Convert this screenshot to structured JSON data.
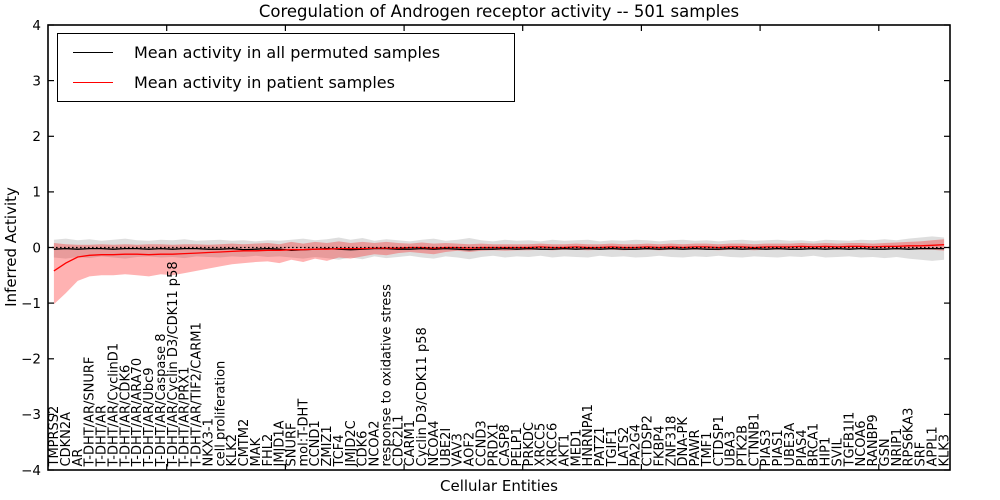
{
  "chart_data": {
    "type": "line",
    "title": "Coregulation of Androgen receptor activity -- 501 samples",
    "xlabel": "Cellular Entities",
    "ylabel": "Inferred Activity",
    "ylim": [
      -4,
      4
    ],
    "yticks": [
      4,
      3,
      2,
      1,
      0,
      -1,
      -2,
      -3,
      -4
    ],
    "ytick_labels": [
      "4",
      "3",
      "2",
      "1",
      "0",
      "−1",
      "−2",
      "−3",
      "−4"
    ],
    "xtick_every": 10,
    "grid": false,
    "legend_position": "upper left",
    "categories": [
      "TMPRSS2",
      "CDKN2A",
      "AR",
      "T-DHT/AR/SNURF",
      "T-DHT/AR",
      "T-DHT/AR/CyclinD1",
      "T-DHT/AR/CDK6",
      "T-DHT/AR/ARA70",
      "T-DHT/AR/Ubc9",
      "T-DHT/AR/Caspase 8",
      "T-DHT/AR/Cyclin D3/CDK11 p58",
      "T-DHT/AR/PRX1",
      "T-DHT/AR/TIF2/CARM1",
      "NKX3-1",
      "cell proliferation",
      "KLK2",
      "CMTM2",
      "MAK",
      "FHL2",
      "JMJD1A",
      "SNURF",
      "mol:T-DHT",
      "CCND1",
      "ZMIZ1",
      "TCF4",
      "JMJD2C",
      "CDK6",
      "NCOA2",
      "response to oxidative stress",
      "CDC2L1",
      "CARM1",
      "Cyclin D3/CDK11 p58",
      "NCOA4",
      "UBE2I",
      "VAV3",
      "AOF2",
      "CCND3",
      "PRDX1",
      "CASP8",
      "PELP1",
      "PRKDC",
      "XRCC5",
      "XRCC6",
      "AKT1",
      "MED1",
      "HNRNPA1",
      "PATZ1",
      "TGIF1",
      "LATS2",
      "PA2G4",
      "CTDSP2",
      "FKBP4",
      "ZNF318",
      "DNA-PK",
      "PAWR",
      "TMF1",
      "CTDSP1",
      "UBA3",
      "PTK2B",
      "CTNNB1",
      "PIAS3",
      "PIAS1",
      "UBE3A",
      "PIAS4",
      "BRCA1",
      "HIP1",
      "SVIL",
      "TGFB1I1",
      "NCOA6",
      "RANBP9",
      "GSN",
      "NRIP1",
      "RPS6KA3",
      "SRF",
      "APPL1",
      "KLK3"
    ],
    "series": [
      {
        "name": "Mean activity in all permuted samples",
        "color": "#000000",
        "style": "solid",
        "values": [
          -0.03,
          -0.02,
          -0.03,
          -0.02,
          -0.02,
          -0.03,
          -0.02,
          -0.02,
          -0.03,
          -0.02,
          -0.03,
          -0.02,
          -0.02,
          -0.03,
          -0.03,
          -0.02,
          -0.04,
          -0.03,
          -0.02,
          -0.03,
          -0.05,
          -0.04,
          -0.03,
          -0.02,
          -0.03,
          -0.04,
          -0.03,
          -0.02,
          -0.02,
          -0.03,
          -0.03,
          -0.02,
          -0.03,
          -0.02,
          -0.03,
          -0.04,
          -0.03,
          -0.03,
          -0.02,
          -0.03,
          -0.02,
          -0.03,
          -0.03,
          -0.02,
          -0.03,
          -0.02,
          -0.03,
          -0.02,
          -0.03,
          -0.03,
          -0.02,
          -0.03,
          -0.02,
          -0.03,
          -0.02,
          -0.03,
          -0.03,
          -0.02,
          -0.03,
          -0.02,
          -0.03,
          -0.02,
          -0.03,
          -0.03,
          -0.02,
          -0.03,
          -0.02,
          -0.03,
          -0.02,
          -0.03,
          -0.03,
          -0.02,
          -0.03,
          -0.02,
          -0.02,
          -0.02
        ]
      },
      {
        "name": "Mean activity in patient samples",
        "color": "#ff0000",
        "style": "solid",
        "values": [
          -0.42,
          -0.28,
          -0.17,
          -0.14,
          -0.13,
          -0.13,
          -0.12,
          -0.12,
          -0.13,
          -0.12,
          -0.12,
          -0.11,
          -0.1,
          -0.09,
          -0.08,
          -0.07,
          -0.06,
          -0.06,
          -0.05,
          -0.05,
          -0.04,
          -0.04,
          -0.03,
          -0.03,
          -0.02,
          -0.02,
          -0.02,
          -0.01,
          -0.01,
          -0.01,
          0.0,
          0.0,
          -0.01,
          0.0,
          0.0,
          -0.01,
          0.0,
          0.0,
          0.0,
          0.0,
          0.0,
          0.01,
          0.0,
          0.0,
          0.01,
          0.0,
          0.0,
          0.01,
          0.0,
          0.0,
          0.01,
          0.0,
          0.01,
          0.0,
          0.01,
          0.01,
          0.0,
          0.01,
          0.01,
          0.0,
          0.01,
          0.01,
          0.01,
          0.02,
          0.01,
          0.02,
          0.01,
          0.02,
          0.02,
          0.01,
          0.02,
          0.02,
          0.03,
          0.03,
          0.04,
          0.05
        ]
      }
    ],
    "bands": [
      {
        "name": "permuted-samples-range",
        "color": "rgba(0,0,0,0.13)",
        "upper": [
          0.14,
          0.16,
          0.13,
          0.15,
          0.12,
          0.14,
          0.16,
          0.13,
          0.12,
          0.14,
          0.13,
          0.15,
          0.12,
          0.13,
          0.14,
          0.12,
          0.13,
          0.11,
          0.13,
          0.12,
          0.14,
          0.16,
          0.13,
          0.15,
          0.18,
          0.14,
          0.17,
          0.12,
          0.15,
          0.13,
          0.11,
          0.14,
          0.16,
          0.12,
          0.14,
          0.17,
          0.13,
          0.11,
          0.14,
          0.12,
          0.13,
          0.11,
          0.14,
          0.12,
          0.13,
          0.14,
          0.11,
          0.13,
          0.12,
          0.14,
          0.13,
          0.11,
          0.13,
          0.14,
          0.12,
          0.13,
          0.11,
          0.13,
          0.14,
          0.12,
          0.13,
          0.14,
          0.12,
          0.13,
          0.11,
          0.14,
          0.13,
          0.12,
          0.14,
          0.13,
          0.15,
          0.13,
          0.16,
          0.18,
          0.2,
          0.18
        ],
        "lower": [
          -0.18,
          -0.2,
          -0.17,
          -0.19,
          -0.16,
          -0.18,
          -0.2,
          -0.17,
          -0.16,
          -0.18,
          -0.17,
          -0.19,
          -0.16,
          -0.17,
          -0.18,
          -0.16,
          -0.17,
          -0.15,
          -0.17,
          -0.16,
          -0.18,
          -0.2,
          -0.17,
          -0.19,
          -0.22,
          -0.18,
          -0.21,
          -0.16,
          -0.19,
          -0.17,
          -0.15,
          -0.18,
          -0.2,
          -0.16,
          -0.18,
          -0.21,
          -0.17,
          -0.15,
          -0.18,
          -0.16,
          -0.17,
          -0.15,
          -0.18,
          -0.16,
          -0.17,
          -0.18,
          -0.15,
          -0.17,
          -0.16,
          -0.18,
          -0.17,
          -0.15,
          -0.17,
          -0.18,
          -0.16,
          -0.17,
          -0.15,
          -0.17,
          -0.18,
          -0.16,
          -0.17,
          -0.18,
          -0.16,
          -0.17,
          -0.15,
          -0.18,
          -0.17,
          -0.16,
          -0.18,
          -0.17,
          -0.19,
          -0.17,
          -0.2,
          -0.22,
          -0.24,
          -0.22
        ]
      },
      {
        "name": "patient-samples-range",
        "color": "rgba(255,0,0,0.30)",
        "upper": [
          0.08,
          0.06,
          0.05,
          0.05,
          0.06,
          0.05,
          0.06,
          0.05,
          0.06,
          0.06,
          0.05,
          0.06,
          0.06,
          0.05,
          0.06,
          0.07,
          0.06,
          0.07,
          0.08,
          0.06,
          0.1,
          0.07,
          0.1,
          0.08,
          0.11,
          0.08,
          0.1,
          0.08,
          0.1,
          0.08,
          0.07,
          0.09,
          0.07,
          0.08,
          0.07,
          0.06,
          0.07,
          0.06,
          0.06,
          0.06,
          0.06,
          0.07,
          0.06,
          0.06,
          0.07,
          0.06,
          0.06,
          0.07,
          0.06,
          0.06,
          0.07,
          0.06,
          0.07,
          0.06,
          0.07,
          0.07,
          0.06,
          0.07,
          0.07,
          0.06,
          0.07,
          0.07,
          0.07,
          0.08,
          0.07,
          0.08,
          0.07,
          0.08,
          0.08,
          0.07,
          0.08,
          0.09,
          0.1,
          0.11,
          0.13,
          0.15
        ],
        "lower": [
          -1.02,
          -0.82,
          -0.6,
          -0.52,
          -0.5,
          -0.5,
          -0.48,
          -0.5,
          -0.52,
          -0.48,
          -0.5,
          -0.46,
          -0.42,
          -0.38,
          -0.34,
          -0.3,
          -0.28,
          -0.26,
          -0.25,
          -0.28,
          -0.22,
          -0.26,
          -0.2,
          -0.24,
          -0.18,
          -0.2,
          -0.16,
          -0.12,
          -0.14,
          -0.1,
          -0.08,
          -0.1,
          -0.12,
          -0.08,
          -0.06,
          -0.08,
          -0.06,
          -0.05,
          -0.06,
          -0.05,
          -0.05,
          -0.04,
          -0.05,
          -0.04,
          -0.04,
          -0.05,
          -0.04,
          -0.04,
          -0.05,
          -0.04,
          -0.04,
          -0.05,
          -0.04,
          -0.04,
          -0.04,
          -0.04,
          -0.05,
          -0.04,
          -0.04,
          -0.05,
          -0.04,
          -0.04,
          -0.04,
          -0.03,
          -0.04,
          -0.03,
          -0.04,
          -0.03,
          -0.03,
          -0.04,
          -0.03,
          -0.04,
          -0.03,
          -0.04,
          -0.04,
          -0.06
        ]
      }
    ],
    "reference_line": {
      "y": 0,
      "color": "#000000",
      "style": "dotted"
    }
  }
}
